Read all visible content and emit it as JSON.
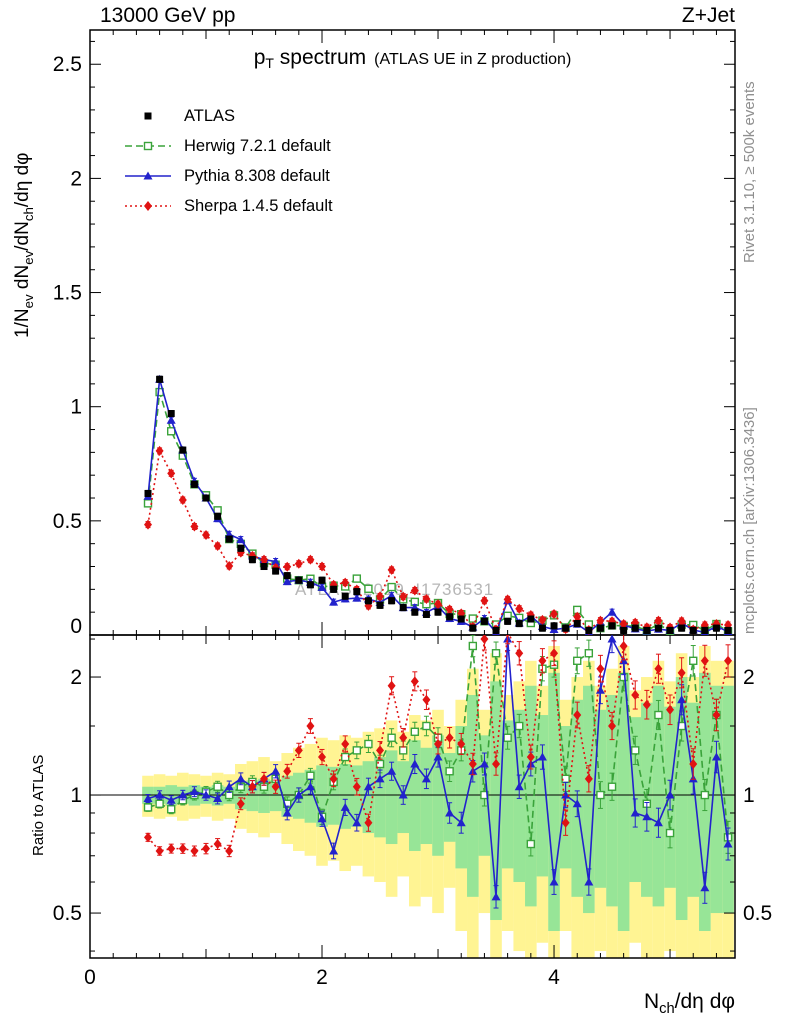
{
  "chart_data": {
    "type": "line",
    "header": {
      "left": "13000 GeV pp",
      "right": "Z+Jet"
    },
    "title": {
      "main": "p",
      "main_sub": "T",
      "main_rest": " spectrum",
      "paren": "(ATLAS UE in Z production)"
    },
    "watermark": "ATLAS_2019_I1736531",
    "side_text": {
      "top": "Rivet 3.1.10, ≥ 500k events",
      "bottom": "mcplots.cern.ch [arXiv:1306.3436]"
    },
    "ylabel_main": {
      "p1": "1/N",
      "s1": "ev",
      "p2": " dN",
      "s2": "ev",
      "p3": "/dN",
      "s3": "ch",
      "p4": "/dη dφ"
    },
    "ylabel_ratio": "Ratio to ATLAS",
    "xlabel": {
      "p1": "N",
      "s1": "ch",
      "p2": "/dη dφ"
    },
    "x_axis": {
      "range": [
        0,
        5.56
      ],
      "major": [
        0,
        2,
        4
      ],
      "medium": [
        1,
        3,
        5
      ],
      "minor_step": 0.2,
      "labels": [
        "0",
        "2",
        "4"
      ]
    },
    "y_main": {
      "range": [
        0,
        2.65
      ],
      "major": [
        0,
        0.5,
        1,
        1.5,
        2,
        2.5
      ],
      "labels": [
        "0",
        "0.5",
        "1",
        "1.5",
        "2",
        "2.5"
      ]
    },
    "y_ratio": {
      "range": [
        0.384,
        2.56
      ],
      "scale": "log",
      "major": [
        0.5,
        1,
        2
      ],
      "labels": [
        "0.5",
        "1",
        "2"
      ],
      "minor": [
        0.4,
        0.6,
        0.7,
        0.8,
        0.9,
        1.5,
        2.5
      ]
    },
    "x_start": 0.5,
    "x_step": 0.1,
    "n": 51,
    "series": [
      {
        "id": "atlas",
        "label": "ATLAS",
        "color": "#000000",
        "marker": "square",
        "line": "none"
      },
      {
        "id": "herwig",
        "label": "Herwig 7.2.1 default",
        "color": "#3aa33a",
        "marker": "square-open",
        "line": "dash"
      },
      {
        "id": "pythia",
        "label": "Pythia 8.308 default",
        "color": "#2222cc",
        "marker": "triangle",
        "line": "solid"
      },
      {
        "id": "sherpa",
        "label": "Sherpa 1.4.5 default",
        "color": "#e01313",
        "marker": "diamond",
        "line": "dot"
      }
    ],
    "atlas_values": [
      0.62,
      1.12,
      0.97,
      0.81,
      0.66,
      0.6,
      0.52,
      0.42,
      0.38,
      0.33,
      0.3,
      0.28,
      0.26,
      0.24,
      0.22,
      0.24,
      0.2,
      0.17,
      0.19,
      0.15,
      0.13,
      0.15,
      0.12,
      0.1,
      0.09,
      0.1,
      0.08,
      0.07,
      0.03,
      0.06,
      0.02,
      0.06,
      0.05,
      0.07,
      0.03,
      0.04,
      0.03,
      0.05,
      0.02,
      0.03,
      0.04,
      0.02,
      0.03,
      0.02,
      0.03,
      0.02,
      0.03,
      0.02,
      0.02,
      0.03,
      0.02
    ],
    "ratios": {
      "herwig": [
        0.93,
        0.95,
        0.92,
        0.97,
        1.0,
        1.02,
        1.05,
        1.0,
        1.05,
        1.08,
        1.05,
        1.1,
        0.95,
        1.0,
        1.12,
        0.88,
        1.08,
        1.25,
        1.3,
        1.35,
        1.2,
        1.4,
        1.3,
        1.45,
        1.5,
        1.4,
        1.15,
        1.3,
        2.4,
        1.0,
        2.3,
        1.4,
        1.5,
        0.75,
        2.1,
        2.15,
        1.1,
        2.2,
        2.3,
        1.0,
        1.05,
        2.0,
        1.3,
        0.95,
        1.6,
        0.8,
        1.5,
        2.2,
        1.0,
        1.6,
        0.78
      ],
      "pythia": [
        0.98,
        1.0,
        0.97,
        1.0,
        1.02,
        1.0,
        0.98,
        1.05,
        1.1,
        1.05,
        1.1,
        1.15,
        0.9,
        1.0,
        1.05,
        0.87,
        0.72,
        0.93,
        0.85,
        1.05,
        1.1,
        1.15,
        1.0,
        1.2,
        1.1,
        1.25,
        0.9,
        0.85,
        1.15,
        1.2,
        0.55,
        2.5,
        1.05,
        1.2,
        1.25,
        0.6,
        1.0,
        0.95,
        0.6,
        1.85,
        2.5,
        2.2,
        0.9,
        0.88,
        0.85,
        1.0,
        1.75,
        1.1,
        0.58,
        1.25,
        0.75
      ],
      "sherpa": [
        0.78,
        0.72,
        0.73,
        0.73,
        0.72,
        0.73,
        0.75,
        0.72,
        0.95,
        1.05,
        1.1,
        1.05,
        1.15,
        1.3,
        1.5,
        1.25,
        1.1,
        1.35,
        1.05,
        0.85,
        1.3,
        1.9,
        1.4,
        1.95,
        1.75,
        1.35,
        1.4,
        1.35,
        1.2,
        2.5,
        1.2,
        2.6,
        2.3,
        1.25,
        2.2,
        2.3,
        0.85,
        1.6,
        1.1,
        2.1,
        1.5,
        2.4,
        1.8,
        1.7,
        2.1,
        1.65,
        2.05,
        1.2,
        2.2,
        1.6,
        2.2
      ]
    },
    "bands": {
      "yellow_color": "#fff493",
      "green_color": "#97e597",
      "yellow_lo": [
        0.88,
        0.87,
        0.88,
        0.86,
        0.87,
        0.88,
        0.86,
        0.87,
        0.82,
        0.8,
        0.78,
        0.8,
        0.75,
        0.72,
        0.7,
        0.66,
        0.68,
        0.64,
        0.66,
        0.62,
        0.6,
        0.55,
        0.62,
        0.52,
        0.55,
        0.5,
        0.58,
        0.45,
        0.35,
        0.5,
        0.3,
        0.45,
        0.4,
        0.35,
        0.42,
        0.3,
        0.45,
        0.38,
        0.35,
        0.4,
        0.35,
        0.3,
        0.42,
        0.38,
        0.35,
        0.4,
        0.32,
        0.38,
        0.3,
        0.35,
        0.35
      ],
      "yellow_hi": [
        1.12,
        1.13,
        1.12,
        1.14,
        1.13,
        1.12,
        1.14,
        1.13,
        1.2,
        1.22,
        1.25,
        1.22,
        1.28,
        1.32,
        1.35,
        1.4,
        1.38,
        1.42,
        1.4,
        1.45,
        1.48,
        1.55,
        1.45,
        1.6,
        1.55,
        1.65,
        1.5,
        1.75,
        2.1,
        1.65,
        2.3,
        1.8,
        1.95,
        2.2,
        1.9,
        2.4,
        1.75,
        2.0,
        2.2,
        1.9,
        2.1,
        2.4,
        1.85,
        2.0,
        2.2,
        1.95,
        2.3,
        2.0,
        2.4,
        2.2,
        2.2
      ],
      "green_lo": [
        0.95,
        0.95,
        0.94,
        0.95,
        0.94,
        0.95,
        0.94,
        0.95,
        0.92,
        0.91,
        0.9,
        0.91,
        0.88,
        0.87,
        0.85,
        0.83,
        0.84,
        0.82,
        0.83,
        0.8,
        0.78,
        0.75,
        0.8,
        0.72,
        0.75,
        0.7,
        0.76,
        0.65,
        0.55,
        0.7,
        0.48,
        0.65,
        0.6,
        0.52,
        0.62,
        0.45,
        0.65,
        0.55,
        0.5,
        0.58,
        0.52,
        0.45,
        0.6,
        0.55,
        0.52,
        0.58,
        0.48,
        0.55,
        0.45,
        0.5,
        0.5
      ],
      "green_hi": [
        1.05,
        1.05,
        1.06,
        1.05,
        1.06,
        1.05,
        1.06,
        1.05,
        1.08,
        1.09,
        1.1,
        1.09,
        1.12,
        1.14,
        1.16,
        1.19,
        1.18,
        1.2,
        1.19,
        1.22,
        1.25,
        1.3,
        1.22,
        1.38,
        1.32,
        1.42,
        1.28,
        1.5,
        1.8,
        1.42,
        1.95,
        1.55,
        1.65,
        1.9,
        1.6,
        2.05,
        1.5,
        1.75,
        1.9,
        1.65,
        1.8,
        2.05,
        1.58,
        1.72,
        1.9,
        1.68,
        2.0,
        1.72,
        2.05,
        1.9,
        1.9
      ]
    }
  }
}
